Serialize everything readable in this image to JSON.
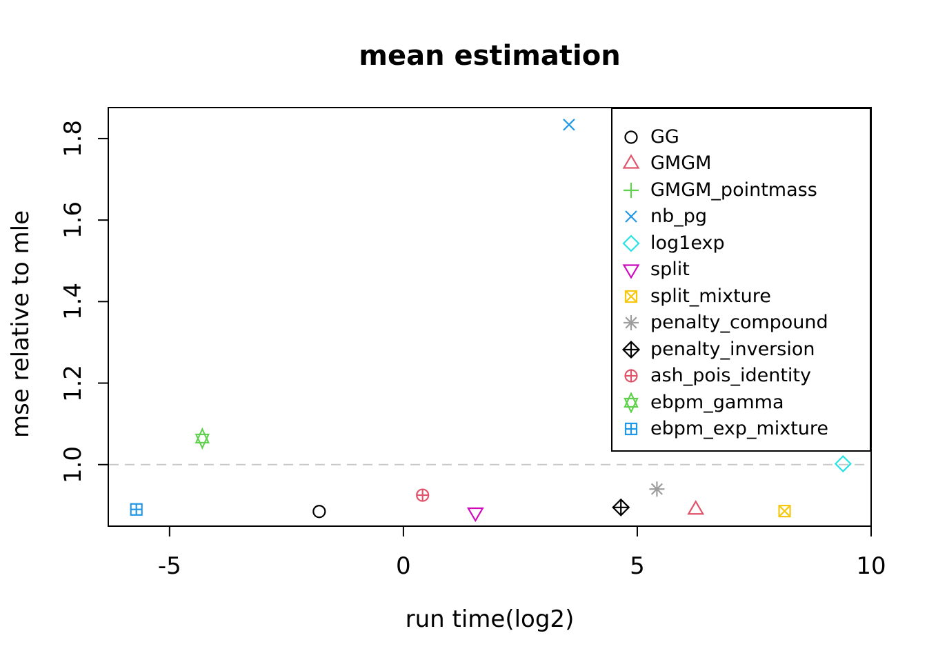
{
  "figure": {
    "background": "#ffffff"
  },
  "chart_data": {
    "type": "scatter",
    "title": "mean estimation",
    "xlabel": "run time(log2)",
    "ylabel": "mse relative to mle",
    "xlim": [
      -6.31,
      10.0
    ],
    "ylim": [
      0.849,
      1.876
    ],
    "x_ticks": {
      "values": [
        -5,
        0,
        5,
        10
      ],
      "labels": [
        "-5",
        "0",
        "5",
        "10"
      ]
    },
    "y_ticks": {
      "values": [
        1.0,
        1.2,
        1.4,
        1.6,
        1.8
      ],
      "labels": [
        "1.0",
        "1.2",
        "1.4",
        "1.6",
        "1.8"
      ]
    },
    "grid": false,
    "legend_position": "top-right",
    "reference_line": {
      "y": 1.0,
      "style": "dashed",
      "color": "#c9c9c9"
    },
    "series": [
      {
        "name": "GG",
        "symbol": "circle",
        "color": "#000000",
        "point_visible": true,
        "x": -1.8,
        "y": 0.885
      },
      {
        "name": "GMGM",
        "symbol": "triangle-up",
        "color": "#DF536B",
        "point_visible": true,
        "x": 6.25,
        "y": 0.89
      },
      {
        "name": "GMGM_pointmass",
        "symbol": "plus",
        "color": "#61D04F",
        "point_visible": false
      },
      {
        "name": "nb_pg",
        "symbol": "x",
        "color": "#2297E6",
        "point_visible": true,
        "x": 3.54,
        "y": 1.834
      },
      {
        "name": "log1exp",
        "symbol": "diamond",
        "color": "#28E2E5",
        "point_visible": true,
        "x": 9.4,
        "y": 1.002
      },
      {
        "name": "split",
        "symbol": "triangle-down",
        "color": "#CD0BBC",
        "point_visible": true,
        "x": 1.54,
        "y": 0.882
      },
      {
        "name": "split_mixture",
        "symbol": "square-x",
        "color": "#F5C710",
        "point_visible": true,
        "x": 8.15,
        "y": 0.886
      },
      {
        "name": "penalty_compound",
        "symbol": "asterisk",
        "color": "#9E9E9E",
        "point_visible": true,
        "x": 5.42,
        "y": 0.94
      },
      {
        "name": "penalty_inversion",
        "symbol": "diamond-plus",
        "color": "#000000",
        "point_visible": true,
        "x": 4.65,
        "y": 0.895
      },
      {
        "name": "ash_pois_identity",
        "symbol": "circle-plus",
        "color": "#DF536B",
        "point_visible": true,
        "x": 0.41,
        "y": 0.925
      },
      {
        "name": "ebpm_gamma",
        "symbol": "star-of-david",
        "color": "#61D04F",
        "point_visible": true,
        "x": -4.3,
        "y": 1.064
      },
      {
        "name": "ebpm_exp_mixture",
        "symbol": "square-plus",
        "color": "#2297E6",
        "point_visible": true,
        "x": -5.71,
        "y": 0.89
      }
    ]
  }
}
